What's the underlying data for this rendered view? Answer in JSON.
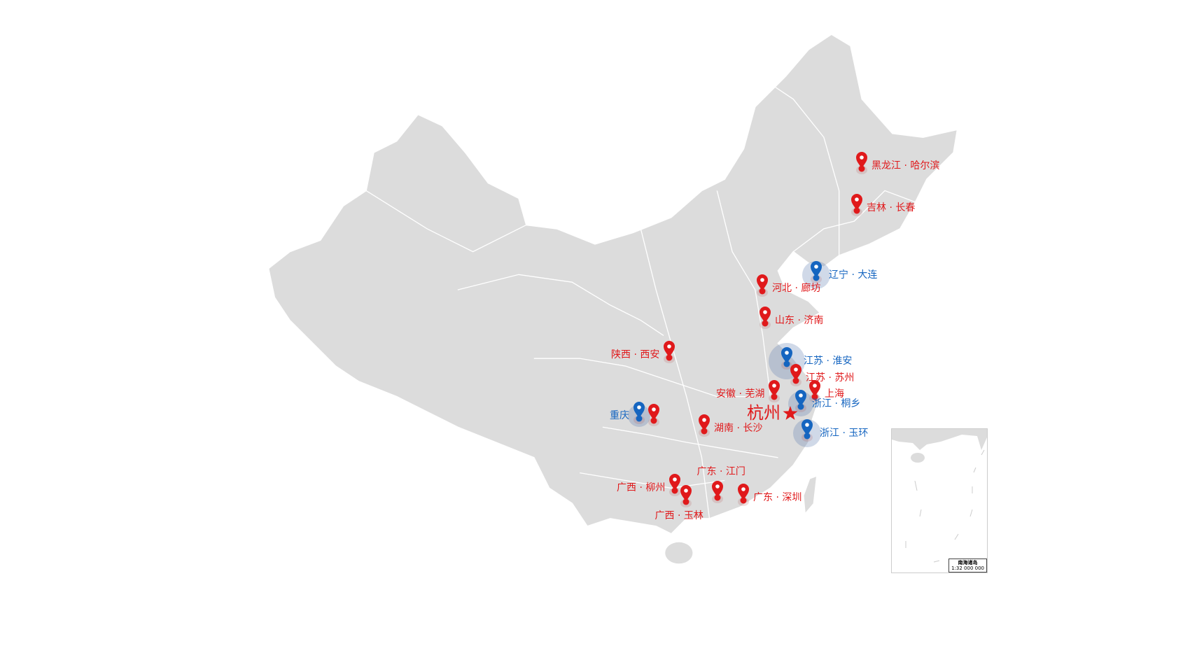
{
  "map": {
    "land_color": "#dcdcdc",
    "border_color": "#ffffff",
    "red_color": "#e0191b",
    "blue_color": "#1565c0",
    "headquarters": {
      "label": "杭州",
      "icon": "star-icon"
    },
    "markers": [
      {
        "label": "黑龙江 · 哈尔滨",
        "color": "red"
      },
      {
        "label": "吉林 · 长春",
        "color": "red"
      },
      {
        "label": "辽宁 · 大连",
        "color": "blue"
      },
      {
        "label": "河北 · 廊坊",
        "color": "red"
      },
      {
        "label": "山东 · 济南",
        "color": "red"
      },
      {
        "label": "陕西 · 西安",
        "color": "red"
      },
      {
        "label": "江苏 · 淮安",
        "color": "blue"
      },
      {
        "label": "江苏 · 苏州",
        "color": "red"
      },
      {
        "label": "上海",
        "color": "red"
      },
      {
        "label": "安徽 · 芜湖",
        "color": "red"
      },
      {
        "label": "浙江 · 桐乡",
        "color": "blue"
      },
      {
        "label": "浙江 · 玉环",
        "color": "blue"
      },
      {
        "label": "重庆",
        "color": "blue"
      },
      {
        "label": "",
        "color": "red"
      },
      {
        "label": "湖南 · 长沙",
        "color": "red"
      },
      {
        "label": "广西 · 柳州",
        "color": "red"
      },
      {
        "label": "广西 · 玉林",
        "color": "red"
      },
      {
        "label": "广东 · 江门",
        "color": "red"
      },
      {
        "label": "广东 · 深圳",
        "color": "red"
      }
    ],
    "inset": {
      "title": "南海诸岛",
      "scale": "1:32 000 000"
    }
  }
}
